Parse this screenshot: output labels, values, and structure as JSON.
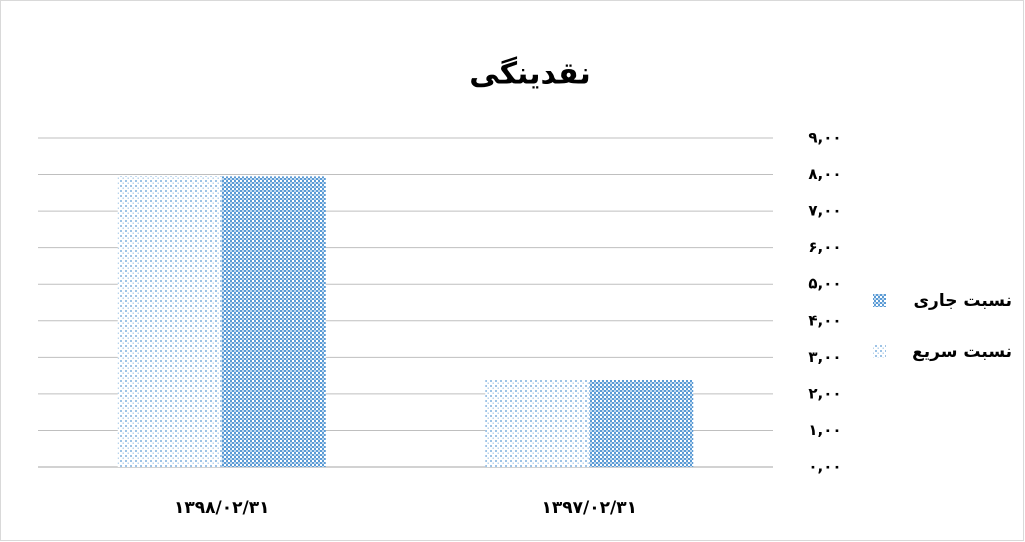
{
  "chart_data": {
    "type": "bar",
    "title": "نقدینگی",
    "categories": [
      "۱۳۹۷/۰۲/۳۱",
      "۱۳۹۸/۰۲/۳۱"
    ],
    "series": [
      {
        "name": "نسبت جاری",
        "color": "#5b9bd5",
        "values": [
          2.38,
          7.95
        ]
      },
      {
        "name": "نسبت سریع",
        "color": "#9dc3e6",
        "values": [
          2.38,
          7.95
        ]
      }
    ],
    "ylim": [
      0,
      9
    ],
    "yticks": [
      {
        "value": 0,
        "label": "۰,۰۰"
      },
      {
        "value": 1,
        "label": "۱,۰۰"
      },
      {
        "value": 2,
        "label": "۲,۰۰"
      },
      {
        "value": 3,
        "label": "۳,۰۰"
      },
      {
        "value": 4,
        "label": "۴,۰۰"
      },
      {
        "value": 5,
        "label": "۵,۰۰"
      },
      {
        "value": 6,
        "label": "۶,۰۰"
      },
      {
        "value": 7,
        "label": "۷,۰۰"
      },
      {
        "value": 8,
        "label": "۸,۰۰"
      },
      {
        "value": 9,
        "label": "۹,۰۰"
      }
    ],
    "grid": true,
    "legend": "right"
  }
}
